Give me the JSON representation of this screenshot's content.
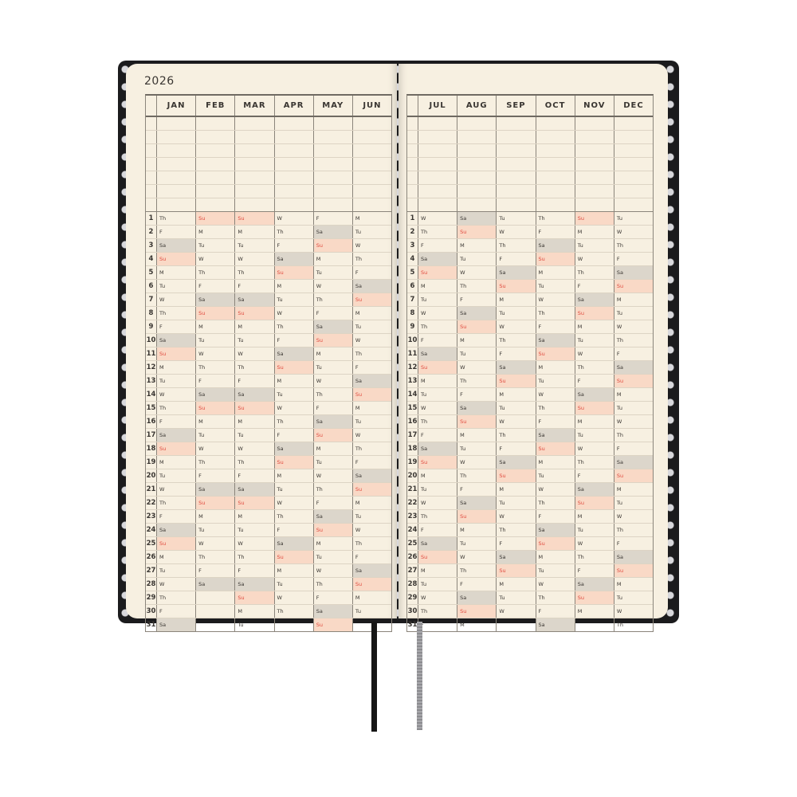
{
  "year": "2026",
  "left_page": {
    "months": [
      {
        "name": "JAN",
        "days": [
          "Th",
          "F",
          "Sa",
          "Su",
          "M",
          "Tu",
          "W",
          "Th",
          "F",
          "Sa",
          "Su",
          "M",
          "Tu",
          "W",
          "Th",
          "F",
          "Sa",
          "Su",
          "M",
          "Tu",
          "W",
          "Th",
          "F",
          "Sa",
          "Su",
          "M",
          "Tu",
          "W",
          "Th",
          "F",
          "Sa"
        ]
      },
      {
        "name": "FEB",
        "days": [
          "Su",
          "M",
          "Tu",
          "W",
          "Th",
          "F",
          "Sa",
          "Su",
          "M",
          "Tu",
          "W",
          "Th",
          "F",
          "Sa",
          "Su",
          "M",
          "Tu",
          "W",
          "Th",
          "F",
          "Sa",
          "Su",
          "M",
          "Tu",
          "W",
          "Th",
          "F",
          "Sa"
        ]
      },
      {
        "name": "MAR",
        "days": [
          "Su",
          "M",
          "Tu",
          "W",
          "Th",
          "F",
          "Sa",
          "Su",
          "M",
          "Tu",
          "W",
          "Th",
          "F",
          "Sa",
          "Su",
          "M",
          "Tu",
          "W",
          "Th",
          "F",
          "Sa",
          "Su",
          "M",
          "Tu",
          "W",
          "Th",
          "F",
          "Sa",
          "Su",
          "M",
          "Tu"
        ]
      },
      {
        "name": "APR",
        "days": [
          "W",
          "Th",
          "F",
          "Sa",
          "Su",
          "M",
          "Tu",
          "W",
          "Th",
          "F",
          "Sa",
          "Su",
          "M",
          "Tu",
          "W",
          "Th",
          "F",
          "Sa",
          "Su",
          "M",
          "Tu",
          "W",
          "Th",
          "F",
          "Sa",
          "Su",
          "M",
          "Tu",
          "W",
          "Th"
        ]
      },
      {
        "name": "MAY",
        "days": [
          "F",
          "Sa",
          "Su",
          "M",
          "Tu",
          "W",
          "Th",
          "F",
          "Sa",
          "Su",
          "M",
          "Tu",
          "W",
          "Th",
          "F",
          "Sa",
          "Su",
          "M",
          "Tu",
          "W",
          "Th",
          "F",
          "Sa",
          "Su",
          "M",
          "Tu",
          "W",
          "Th",
          "F",
          "Sa",
          "Su"
        ]
      },
      {
        "name": "JUN",
        "days": [
          "M",
          "Tu",
          "W",
          "Th",
          "F",
          "Sa",
          "Su",
          "M",
          "Tu",
          "W",
          "Th",
          "F",
          "Sa",
          "Su",
          "M",
          "Tu",
          "W",
          "Th",
          "F",
          "Sa",
          "Su",
          "M",
          "Tu",
          "W",
          "Th",
          "F",
          "Sa",
          "Su",
          "M",
          "Tu"
        ]
      }
    ]
  },
  "right_page": {
    "months": [
      {
        "name": "JUL",
        "days": [
          "W",
          "Th",
          "F",
          "Sa",
          "Su",
          "M",
          "Tu",
          "W",
          "Th",
          "F",
          "Sa",
          "Su",
          "M",
          "Tu",
          "W",
          "Th",
          "F",
          "Sa",
          "Su",
          "M",
          "Tu",
          "W",
          "Th",
          "F",
          "Sa",
          "Su",
          "M",
          "Tu",
          "W",
          "Th",
          "F"
        ]
      },
      {
        "name": "AUG",
        "days": [
          "Sa",
          "Su",
          "M",
          "Tu",
          "W",
          "Th",
          "F",
          "Sa",
          "Su",
          "M",
          "Tu",
          "W",
          "Th",
          "F",
          "Sa",
          "Su",
          "M",
          "Tu",
          "W",
          "Th",
          "F",
          "Sa",
          "Su",
          "M",
          "Tu",
          "W",
          "Th",
          "F",
          "Sa",
          "Su",
          "M"
        ]
      },
      {
        "name": "SEP",
        "days": [
          "Tu",
          "W",
          "Th",
          "F",
          "Sa",
          "Su",
          "M",
          "Tu",
          "W",
          "Th",
          "F",
          "Sa",
          "Su",
          "M",
          "Tu",
          "W",
          "Th",
          "F",
          "Sa",
          "Su",
          "M",
          "Tu",
          "W",
          "Th",
          "F",
          "Sa",
          "Su",
          "M",
          "Tu",
          "W"
        ]
      },
      {
        "name": "OCT",
        "days": [
          "Th",
          "F",
          "Sa",
          "Su",
          "M",
          "Tu",
          "W",
          "Th",
          "F",
          "Sa",
          "Su",
          "M",
          "Tu",
          "W",
          "Th",
          "F",
          "Sa",
          "Su",
          "M",
          "Tu",
          "W",
          "Th",
          "F",
          "Sa",
          "Su",
          "M",
          "Tu",
          "W",
          "Th",
          "F",
          "Sa"
        ]
      },
      {
        "name": "NOV",
        "days": [
          "Su",
          "M",
          "Tu",
          "W",
          "Th",
          "F",
          "Sa",
          "Su",
          "M",
          "Tu",
          "W",
          "Th",
          "F",
          "Sa",
          "Su",
          "M",
          "Tu",
          "W",
          "Th",
          "F",
          "Sa",
          "Su",
          "M",
          "Tu",
          "W",
          "Th",
          "F",
          "Sa",
          "Su",
          "M"
        ]
      },
      {
        "name": "DEC",
        "days": [
          "Tu",
          "W",
          "Th",
          "F",
          "Sa",
          "Su",
          "M",
          "Tu",
          "W",
          "Th",
          "F",
          "Sa",
          "Su",
          "M",
          "Tu",
          "W",
          "Th",
          "F",
          "Sa",
          "Su",
          "M",
          "Tu",
          "W",
          "Th",
          "F",
          "Sa",
          "Su",
          "M",
          "Tu",
          "W",
          "Th"
        ]
      }
    ]
  },
  "day_numbers": [
    "1",
    "2",
    "3",
    "4",
    "5",
    "6",
    "7",
    "8",
    "9",
    "10",
    "11",
    "12",
    "13",
    "14",
    "15",
    "16",
    "17",
    "18",
    "19",
    "20",
    "21",
    "22",
    "23",
    "24",
    "25",
    "26",
    "27",
    "28",
    "29",
    "30",
    "31"
  ],
  "colors": {
    "saturday_shade": "#dcd6cb",
    "sunday_shade": "#f9d9c6",
    "sunday_text": "#e0483c",
    "paper": "#f7f0e1",
    "cover": "#1b1b1d"
  }
}
